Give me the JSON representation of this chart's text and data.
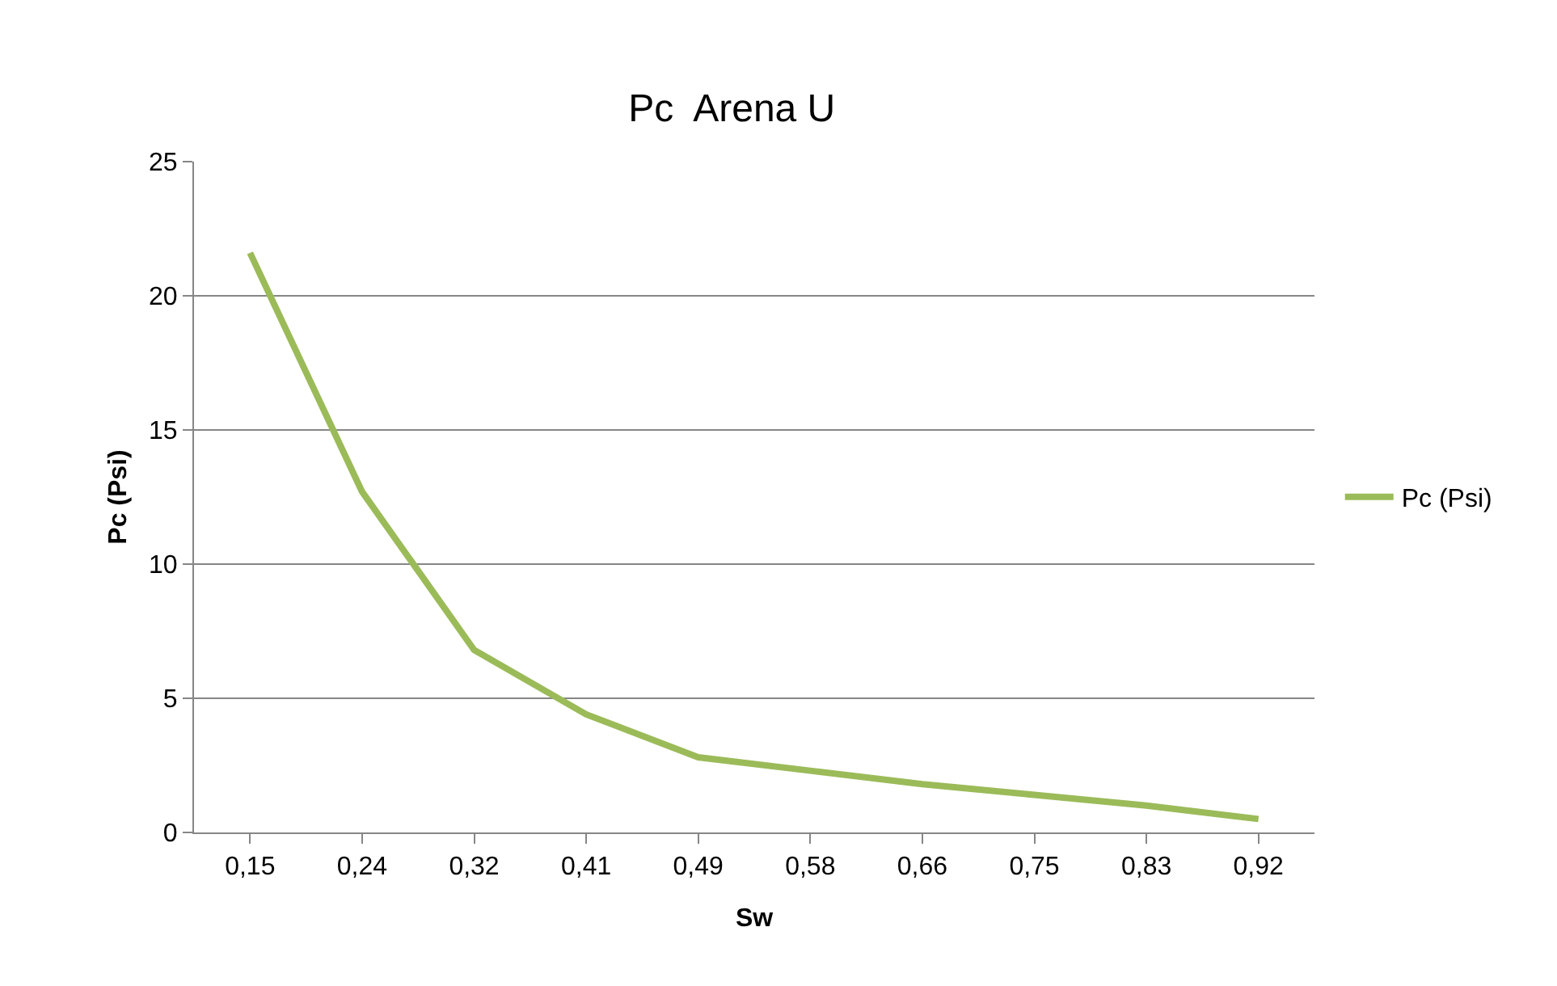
{
  "chart_data": {
    "type": "line",
    "title": "Pc  Arena U",
    "xlabel": "Sw",
    "ylabel": "Pc (Psi)",
    "categories": [
      "0,15",
      "0,24",
      "0,32",
      "0,41",
      "0,49",
      "0,58",
      "0,66",
      "0,75",
      "0,83",
      "0,92"
    ],
    "series": [
      {
        "name": "Pc (Psi)",
        "color": "#9bbb59",
        "values": [
          21.6,
          12.7,
          6.8,
          4.4,
          2.8,
          2.3,
          1.8,
          1.4,
          1.0,
          0.5
        ]
      }
    ],
    "ylim": [
      0,
      25
    ],
    "yticks": [
      0,
      5,
      10,
      15,
      20,
      25
    ],
    "grid": "y",
    "legend": "right",
    "marker": "none",
    "line_style": "solid"
  }
}
